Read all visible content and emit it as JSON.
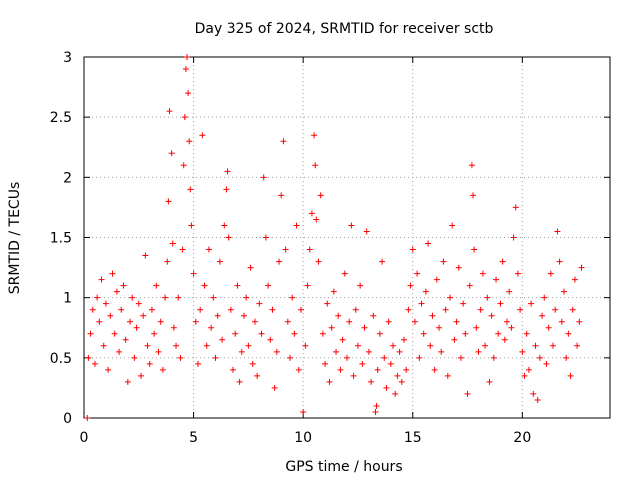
{
  "chart_data": {
    "type": "scatter",
    "title": "Day 325 of 2024, SRMTID for receiver sctb",
    "xlabel": "GPS time / hours",
    "ylabel": "SRMTID / TECUs",
    "xlim": [
      0,
      24
    ],
    "ylim": [
      0,
      3
    ],
    "xticks": [
      0,
      5,
      10,
      15,
      20
    ],
    "xtick_labels": [
      "0",
      "5",
      "10",
      "15",
      "20"
    ],
    "yticks": [
      0,
      0.5,
      1,
      1.5,
      2,
      2.5,
      3
    ],
    "ytick_labels": [
      "0",
      "0.5",
      "1",
      "1.5",
      "2",
      "2.5",
      "3"
    ],
    "grid": true,
    "marker": "plus",
    "color": "#ff0000",
    "series": [
      {
        "name": "SRMTID",
        "points": [
          [
            0.15,
            0.0
          ],
          [
            0.2,
            0.5
          ],
          [
            0.3,
            0.7
          ],
          [
            0.4,
            0.9
          ],
          [
            0.5,
            0.45
          ],
          [
            0.6,
            1.0
          ],
          [
            0.7,
            0.8
          ],
          [
            0.8,
            1.15
          ],
          [
            0.9,
            0.6
          ],
          [
            1.0,
            0.95
          ],
          [
            1.1,
            0.4
          ],
          [
            1.2,
            0.85
          ],
          [
            1.3,
            1.2
          ],
          [
            1.4,
            0.7
          ],
          [
            1.5,
            1.05
          ],
          [
            1.6,
            0.55
          ],
          [
            1.7,
            0.9
          ],
          [
            1.8,
            1.1
          ],
          [
            1.9,
            0.65
          ],
          [
            2.0,
            0.3
          ],
          [
            2.1,
            0.8
          ],
          [
            2.2,
            1.0
          ],
          [
            2.3,
            0.5
          ],
          [
            2.4,
            0.75
          ],
          [
            2.5,
            0.95
          ],
          [
            2.6,
            0.35
          ],
          [
            2.7,
            0.85
          ],
          [
            2.8,
            1.35
          ],
          [
            2.9,
            0.6
          ],
          [
            3.0,
            0.45
          ],
          [
            3.1,
            0.9
          ],
          [
            3.2,
            0.7
          ],
          [
            3.3,
            1.1
          ],
          [
            3.4,
            0.55
          ],
          [
            3.5,
            0.8
          ],
          [
            3.6,
            0.4
          ],
          [
            3.7,
            1.0
          ],
          [
            3.8,
            1.3
          ],
          [
            3.85,
            1.8
          ],
          [
            3.9,
            2.55
          ],
          [
            4.0,
            2.2
          ],
          [
            4.05,
            1.45
          ],
          [
            4.1,
            0.75
          ],
          [
            4.2,
            0.6
          ],
          [
            4.3,
            1.0
          ],
          [
            4.4,
            0.5
          ],
          [
            4.5,
            1.4
          ],
          [
            4.55,
            2.1
          ],
          [
            4.6,
            2.5
          ],
          [
            4.65,
            2.9
          ],
          [
            4.7,
            3.0
          ],
          [
            4.75,
            2.7
          ],
          [
            4.8,
            2.3
          ],
          [
            4.85,
            1.9
          ],
          [
            4.9,
            1.6
          ],
          [
            5.0,
            1.2
          ],
          [
            5.1,
            0.8
          ],
          [
            5.2,
            0.45
          ],
          [
            5.3,
            0.9
          ],
          [
            5.4,
            2.35
          ],
          [
            5.5,
            1.1
          ],
          [
            5.6,
            0.6
          ],
          [
            5.7,
            1.4
          ],
          [
            5.8,
            0.75
          ],
          [
            5.9,
            1.0
          ],
          [
            6.0,
            0.5
          ],
          [
            6.1,
            0.85
          ],
          [
            6.2,
            1.3
          ],
          [
            6.3,
            0.65
          ],
          [
            6.4,
            1.6
          ],
          [
            6.5,
            1.9
          ],
          [
            6.55,
            2.05
          ],
          [
            6.6,
            1.5
          ],
          [
            6.7,
            0.9
          ],
          [
            6.8,
            0.4
          ],
          [
            6.9,
            0.7
          ],
          [
            7.0,
            1.1
          ],
          [
            7.1,
            0.3
          ],
          [
            7.2,
            0.55
          ],
          [
            7.3,
            0.85
          ],
          [
            7.4,
            1.0
          ],
          [
            7.5,
            0.6
          ],
          [
            7.6,
            1.25
          ],
          [
            7.7,
            0.45
          ],
          [
            7.8,
            0.8
          ],
          [
            7.9,
            0.35
          ],
          [
            8.0,
            0.95
          ],
          [
            8.1,
            0.7
          ],
          [
            8.2,
            2.0
          ],
          [
            8.3,
            1.5
          ],
          [
            8.4,
            1.1
          ],
          [
            8.5,
            0.65
          ],
          [
            8.6,
            0.9
          ],
          [
            8.7,
            0.25
          ],
          [
            8.8,
            0.55
          ],
          [
            8.9,
            1.3
          ],
          [
            9.0,
            1.85
          ],
          [
            9.1,
            2.3
          ],
          [
            9.2,
            1.4
          ],
          [
            9.3,
            0.8
          ],
          [
            9.4,
            0.5
          ],
          [
            9.5,
            1.0
          ],
          [
            9.6,
            0.7
          ],
          [
            9.7,
            1.6
          ],
          [
            9.8,
            0.4
          ],
          [
            9.9,
            0.9
          ],
          [
            10.0,
            0.05
          ],
          [
            10.1,
            0.6
          ],
          [
            10.2,
            1.1
          ],
          [
            10.3,
            1.4
          ],
          [
            10.4,
            1.7
          ],
          [
            10.5,
            2.35
          ],
          [
            10.55,
            2.1
          ],
          [
            10.6,
            1.65
          ],
          [
            10.7,
            1.3
          ],
          [
            10.8,
            1.85
          ],
          [
            10.9,
            0.7
          ],
          [
            11.0,
            0.45
          ],
          [
            11.1,
            0.95
          ],
          [
            11.2,
            0.3
          ],
          [
            11.3,
            0.75
          ],
          [
            11.4,
            1.05
          ],
          [
            11.5,
            0.55
          ],
          [
            11.6,
            0.85
          ],
          [
            11.7,
            0.4
          ],
          [
            11.8,
            0.65
          ],
          [
            11.9,
            1.2
          ],
          [
            12.0,
            0.5
          ],
          [
            12.1,
            0.8
          ],
          [
            12.2,
            1.6
          ],
          [
            12.3,
            0.35
          ],
          [
            12.4,
            0.9
          ],
          [
            12.5,
            0.6
          ],
          [
            12.6,
            1.1
          ],
          [
            12.7,
            0.45
          ],
          [
            12.8,
            0.75
          ],
          [
            12.9,
            1.55
          ],
          [
            13.0,
            0.55
          ],
          [
            13.1,
            0.3
          ],
          [
            13.2,
            0.85
          ],
          [
            13.3,
            0.05
          ],
          [
            13.35,
            0.1
          ],
          [
            13.4,
            0.4
          ],
          [
            13.5,
            0.7
          ],
          [
            13.6,
            1.3
          ],
          [
            13.7,
            0.5
          ],
          [
            13.8,
            0.25
          ],
          [
            13.9,
            0.8
          ],
          [
            14.0,
            0.45
          ],
          [
            14.1,
            0.6
          ],
          [
            14.2,
            0.2
          ],
          [
            14.3,
            0.35
          ],
          [
            14.4,
            0.55
          ],
          [
            14.5,
            0.3
          ],
          [
            14.6,
            0.65
          ],
          [
            14.7,
            0.4
          ],
          [
            14.8,
            0.9
          ],
          [
            14.9,
            1.1
          ],
          [
            15.0,
            1.4
          ],
          [
            15.1,
            0.8
          ],
          [
            15.2,
            1.2
          ],
          [
            15.3,
            0.5
          ],
          [
            15.4,
            0.95
          ],
          [
            15.5,
            0.7
          ],
          [
            15.6,
            1.05
          ],
          [
            15.7,
            1.45
          ],
          [
            15.8,
            0.6
          ],
          [
            15.9,
            0.85
          ],
          [
            16.0,
            0.4
          ],
          [
            16.1,
            1.15
          ],
          [
            16.2,
            0.75
          ],
          [
            16.3,
            0.55
          ],
          [
            16.4,
            1.3
          ],
          [
            16.5,
            0.9
          ],
          [
            16.6,
            0.35
          ],
          [
            16.7,
            1.0
          ],
          [
            16.8,
            1.6
          ],
          [
            16.9,
            0.65
          ],
          [
            17.0,
            0.8
          ],
          [
            17.1,
            1.25
          ],
          [
            17.2,
            0.5
          ],
          [
            17.3,
            0.95
          ],
          [
            17.4,
            0.7
          ],
          [
            17.5,
            0.2
          ],
          [
            17.6,
            1.1
          ],
          [
            17.7,
            2.1
          ],
          [
            17.75,
            1.85
          ],
          [
            17.8,
            1.4
          ],
          [
            17.9,
            0.75
          ],
          [
            18.0,
            0.55
          ],
          [
            18.1,
            0.9
          ],
          [
            18.2,
            1.2
          ],
          [
            18.3,
            0.6
          ],
          [
            18.4,
            1.0
          ],
          [
            18.5,
            0.3
          ],
          [
            18.6,
            0.85
          ],
          [
            18.7,
            0.5
          ],
          [
            18.8,
            1.15
          ],
          [
            18.9,
            0.7
          ],
          [
            19.0,
            0.95
          ],
          [
            19.1,
            1.3
          ],
          [
            19.2,
            0.65
          ],
          [
            19.3,
            0.8
          ],
          [
            19.4,
            1.05
          ],
          [
            19.5,
            0.75
          ],
          [
            19.6,
            1.5
          ],
          [
            19.7,
            1.75
          ],
          [
            19.8,
            1.2
          ],
          [
            19.9,
            0.9
          ],
          [
            20.0,
            0.55
          ],
          [
            20.1,
            0.35
          ],
          [
            20.2,
            0.7
          ],
          [
            20.3,
            0.4
          ],
          [
            20.4,
            0.95
          ],
          [
            20.5,
            0.2
          ],
          [
            20.6,
            0.6
          ],
          [
            20.7,
            0.15
          ],
          [
            20.8,
            0.5
          ],
          [
            20.9,
            0.85
          ],
          [
            21.0,
            1.0
          ],
          [
            21.1,
            0.45
          ],
          [
            21.2,
            0.75
          ],
          [
            21.3,
            1.2
          ],
          [
            21.4,
            0.6
          ],
          [
            21.5,
            0.9
          ],
          [
            21.6,
            1.55
          ],
          [
            21.7,
            1.3
          ],
          [
            21.8,
            0.8
          ],
          [
            21.9,
            1.05
          ],
          [
            22.0,
            0.5
          ],
          [
            22.1,
            0.7
          ],
          [
            22.2,
            0.35
          ],
          [
            22.3,
            0.9
          ],
          [
            22.4,
            1.15
          ],
          [
            22.5,
            0.6
          ],
          [
            22.6,
            0.8
          ],
          [
            22.7,
            1.25
          ]
        ]
      }
    ]
  }
}
